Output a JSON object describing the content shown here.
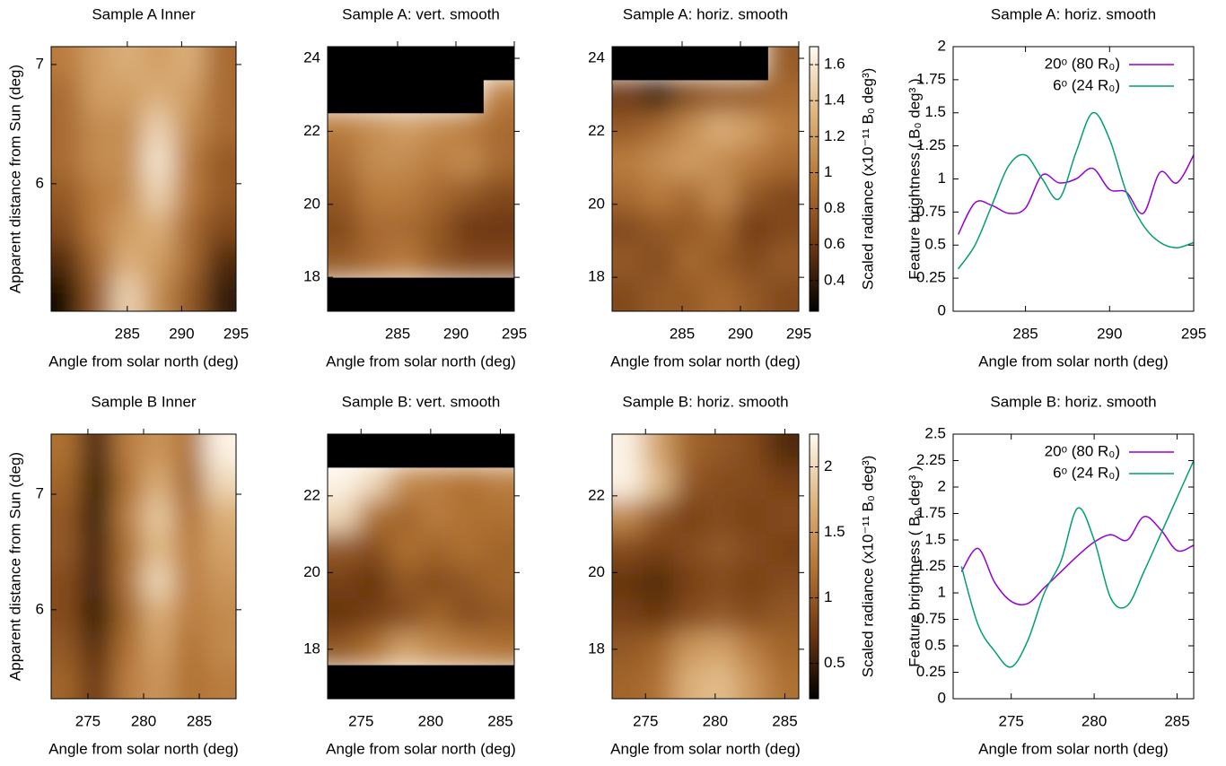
{
  "chart_data": [
    {
      "type": "heatmap",
      "title": "Sample A Inner",
      "xlabel": "Angle from solar north (deg)",
      "ylabel": "Apparent distance from Sun (deg)",
      "xlim": [
        278,
        295
      ],
      "xticks": [
        285,
        290,
        295
      ],
      "ylim": [
        4.93,
        7.15
      ],
      "yticks": [
        6,
        7
      ],
      "clim": [
        0.23,
        1.7
      ],
      "colormap": [
        "#000000",
        "#6e3812",
        "#b57636",
        "#dfb57f",
        "#fffaf0"
      ],
      "z": [
        [
          1.0,
          1.2,
          1.3,
          1.2,
          1.3,
          0.9
        ],
        [
          0.9,
          1.2,
          1.2,
          1.3,
          1.2,
          0.9
        ],
        [
          0.9,
          1.1,
          1.1,
          1.5,
          1.1,
          0.9
        ],
        [
          0.9,
          1.1,
          1.1,
          1.6,
          1.0,
          0.8
        ],
        [
          0.8,
          1.0,
          1.1,
          1.5,
          1.0,
          0.8
        ],
        [
          0.7,
          1.0,
          1.2,
          1.3,
          0.9,
          0.7
        ],
        [
          0.5,
          0.9,
          1.3,
          1.2,
          0.9,
          0.5
        ],
        [
          0.3,
          0.8,
          1.5,
          1.1,
          0.8,
          0.4
        ]
      ]
    },
    {
      "type": "heatmap",
      "title": "Sample A: vert. smooth",
      "xlabel": "Angle from solar north (deg)",
      "xlim": [
        279,
        295
      ],
      "xticks": [
        285,
        290,
        295
      ],
      "ylim": [
        17.07,
        24.32
      ],
      "yticks": [
        18,
        20,
        22,
        24
      ],
      "clim": [
        0.23,
        1.7
      ],
      "colormap": [
        "#000000",
        "#6e3812",
        "#b57636",
        "#dfb57f",
        "#fffaf0"
      ],
      "z": [
        [
          null,
          null,
          null,
          null,
          null,
          null
        ],
        [
          null,
          null,
          null,
          null,
          null,
          1.0
        ],
        [
          1.0,
          1.1,
          1.2,
          1.1,
          1.0,
          0.9
        ],
        [
          0.9,
          1.1,
          1.1,
          1.0,
          1.1,
          0.9
        ],
        [
          0.8,
          1.0,
          1.0,
          0.9,
          0.8,
          0.7
        ],
        [
          0.7,
          0.9,
          0.9,
          0.8,
          0.6,
          0.6
        ],
        [
          0.8,
          0.9,
          1.0,
          0.8,
          0.7,
          0.7
        ],
        [
          null,
          null,
          null,
          null,
          null,
          null
        ]
      ]
    },
    {
      "type": "heatmap",
      "title": "Sample A: horiz. smooth",
      "xlabel": "Angle from solar north (deg)",
      "xlim": [
        279,
        295
      ],
      "xticks": [
        285,
        290,
        295
      ],
      "ylim": [
        17.07,
        24.32
      ],
      "yticks": [
        18,
        20,
        22,
        24
      ],
      "clim": [
        0.23,
        1.7
      ],
      "colormap": [
        "#000000",
        "#6e3812",
        "#b57636",
        "#dfb57f",
        "#fffaf0"
      ],
      "colorbar": {
        "label": "Scaled radiance (x10⁻¹¹ B₀ deg³)",
        "ticks": [
          0.4,
          0.6,
          0.8,
          1,
          1.2,
          1.4,
          1.6
        ]
      },
      "z": [
        [
          null,
          null,
          null,
          null,
          null,
          0.8
        ],
        [
          0.6,
          0.4,
          0.7,
          0.8,
          0.8,
          0.9
        ],
        [
          0.8,
          0.9,
          1.1,
          1.3,
          1.2,
          1.0
        ],
        [
          1.0,
          1.1,
          1.2,
          1.1,
          1.0,
          0.9
        ],
        [
          0.9,
          1.0,
          0.9,
          1.1,
          0.8,
          0.7
        ],
        [
          0.7,
          0.8,
          0.8,
          0.9,
          0.6,
          0.7
        ],
        [
          0.8,
          0.7,
          0.9,
          0.8,
          0.7,
          0.8
        ],
        [
          0.7,
          0.8,
          0.8,
          0.9,
          0.8,
          0.7
        ]
      ]
    },
    {
      "type": "line",
      "title": "Sample A: horiz. smooth",
      "xlabel": "Angle from solar north (deg)",
      "ylabel": "Feature brightness ( B₀ deg³ )",
      "xlim": [
        280.7,
        295
      ],
      "xticks": [
        285,
        290,
        295
      ],
      "ylim": [
        0,
        2
      ],
      "yticks": [
        0,
        0.25,
        0.5,
        0.75,
        1,
        1.25,
        1.5,
        1.75,
        2
      ],
      "x": [
        281,
        282,
        283,
        284,
        285,
        286,
        287,
        288,
        289,
        290,
        291,
        292,
        293,
        294,
        295
      ],
      "series": [
        {
          "name": "20ᵒ (80 R₀)",
          "color": "#9400d3",
          "values": [
            0.58,
            0.82,
            0.8,
            0.74,
            0.78,
            1.03,
            0.97,
            1.0,
            1.08,
            0.92,
            0.9,
            0.74,
            1.05,
            0.97,
            1.18
          ]
        },
        {
          "name": "6ᵒ (24 R₀)",
          "color": "#009e73",
          "values": [
            0.32,
            0.5,
            0.8,
            1.1,
            1.18,
            1.0,
            0.85,
            1.2,
            1.5,
            1.3,
            0.9,
            0.65,
            0.52,
            0.48,
            0.52
          ]
        }
      ]
    },
    {
      "type": "heatmap",
      "title": "Sample B Inner",
      "xlabel": "Angle from solar north (deg)",
      "ylabel": "Apparent distance from Sun (deg)",
      "xlim": [
        271.7,
        288.3
      ],
      "xticks": [
        275,
        280,
        285
      ],
      "ylim": [
        5.23,
        7.52
      ],
      "yticks": [
        6,
        7
      ],
      "clim": [
        0.23,
        2.25
      ],
      "colormap": [
        "#000000",
        "#6e3812",
        "#b57636",
        "#dfb57f",
        "#fffaf0"
      ],
      "z": [
        [
          1.2,
          0.5,
          1.3,
          1.5,
          1.2,
          2.2
        ],
        [
          1.1,
          0.4,
          1.2,
          1.7,
          1.1,
          2.0
        ],
        [
          1.0,
          0.4,
          1.3,
          1.9,
          1.2,
          1.7
        ],
        [
          1.0,
          0.5,
          1.2,
          1.8,
          1.3,
          1.6
        ],
        [
          0.9,
          0.5,
          1.2,
          2.0,
          1.3,
          1.5
        ],
        [
          0.9,
          0.4,
          1.1,
          1.7,
          1.3,
          1.4
        ],
        [
          1.0,
          0.6,
          1.2,
          1.6,
          1.2,
          1.4
        ],
        [
          1.1,
          0.7,
          1.3,
          1.5,
          1.2,
          1.3
        ]
      ]
    },
    {
      "type": "heatmap",
      "title": "Sample B: vert. smooth",
      "xlabel": "Angle from solar north (deg)",
      "xlim": [
        272.6,
        286
      ],
      "xticks": [
        275,
        280,
        285
      ],
      "ylim": [
        16.71,
        23.61
      ],
      "yticks": [
        18,
        20,
        22
      ],
      "clim": [
        0.23,
        2.25
      ],
      "colormap": [
        "#000000",
        "#6e3812",
        "#b57636",
        "#dfb57f",
        "#fffaf0"
      ],
      "z": [
        [
          null,
          null,
          null,
          null,
          null,
          null
        ],
        [
          2.2,
          2.0,
          1.4,
          1.3,
          1.2,
          1.3
        ],
        [
          2.0,
          1.2,
          1.1,
          1.3,
          1.2,
          1.2
        ],
        [
          1.0,
          0.9,
          1.2,
          1.1,
          1.2,
          1.1
        ],
        [
          0.8,
          0.7,
          1.0,
          0.9,
          1.0,
          1.1
        ],
        [
          0.7,
          0.8,
          0.9,
          1.1,
          0.9,
          1.0
        ],
        [
          1.0,
          1.2,
          1.6,
          1.4,
          1.3,
          1.2
        ],
        [
          null,
          null,
          null,
          null,
          null,
          null
        ]
      ]
    },
    {
      "type": "heatmap",
      "title": "Sample B: horiz. smooth",
      "xlabel": "Angle from solar north (deg)",
      "xlim": [
        272.6,
        286
      ],
      "xticks": [
        275,
        280,
        285
      ],
      "ylim": [
        16.71,
        23.61
      ],
      "yticks": [
        18,
        20,
        22
      ],
      "clim": [
        0.23,
        2.25
      ],
      "colormap": [
        "#000000",
        "#6e3812",
        "#b57636",
        "#dfb57f",
        "#fffaf0"
      ],
      "colorbar": {
        "label": "Scaled radiance (x10⁻¹¹ B₀ deg³)",
        "ticks": [
          0.5,
          1,
          1.5,
          2
        ]
      },
      "z": [
        [
          2.2,
          1.6,
          1.1,
          1.0,
          0.9,
          0.6
        ],
        [
          2.2,
          1.8,
          1.0,
          0.9,
          0.9,
          0.8
        ],
        [
          1.4,
          1.0,
          0.8,
          0.9,
          0.8,
          0.9
        ],
        [
          0.9,
          0.8,
          0.9,
          1.0,
          0.9,
          0.8
        ],
        [
          0.7,
          0.6,
          0.8,
          0.9,
          0.8,
          0.9
        ],
        [
          0.8,
          0.7,
          0.9,
          1.0,
          0.9,
          1.0
        ],
        [
          1.0,
          1.1,
          1.5,
          1.6,
          1.3,
          1.1
        ],
        [
          1.1,
          1.2,
          1.7,
          1.8,
          1.5,
          1.2
        ]
      ]
    },
    {
      "type": "line",
      "title": "Sample B: horiz. smooth",
      "xlabel": "Angle from solar north (deg)",
      "ylabel": "Feature brightness ( B₀ deg³ )",
      "xlim": [
        271.5,
        286
      ],
      "xticks": [
        275,
        280,
        285
      ],
      "ylim": [
        0,
        2.5
      ],
      "yticks": [
        0,
        0.25,
        0.5,
        0.75,
        1,
        1.25,
        1.5,
        1.75,
        2,
        2.25,
        2.5
      ],
      "x": [
        272,
        273,
        274,
        275,
        276,
        277,
        278,
        279,
        280,
        281,
        282,
        283,
        284,
        285,
        286
      ],
      "series": [
        {
          "name": "20ᵒ (80 R₀)",
          "color": "#9400d3",
          "values": [
            1.2,
            1.42,
            1.1,
            0.92,
            0.9,
            1.05,
            1.2,
            1.35,
            1.48,
            1.55,
            1.5,
            1.72,
            1.6,
            1.4,
            1.45
          ]
        },
        {
          "name": "6ᵒ (24 R₀)",
          "color": "#009e73",
          "values": [
            1.25,
            0.7,
            0.45,
            0.3,
            0.55,
            1.0,
            1.3,
            1.8,
            1.5,
            0.95,
            0.88,
            1.2,
            1.55,
            1.9,
            2.25
          ]
        }
      ]
    }
  ]
}
